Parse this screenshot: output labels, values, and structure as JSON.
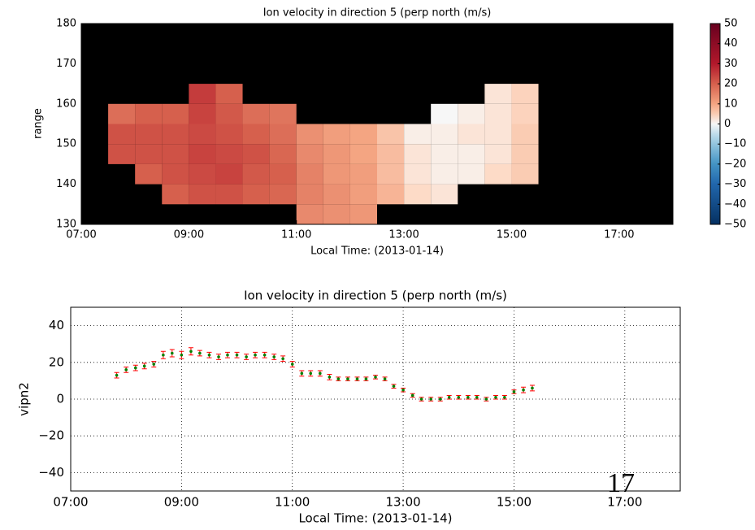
{
  "chart_data": [
    {
      "type": "heatmap",
      "title": "Ion velocity in direction 5 (perp north (m/s)",
      "x_label": "Local Time: (2013-01-14)",
      "y_label": "range",
      "background": "#000000",
      "colormap": "RdBu_r",
      "x_edges": [
        7.5,
        8,
        8.5,
        9,
        9.5,
        10,
        10.5,
        11,
        11.5,
        12,
        12.5,
        13,
        13.5,
        14,
        14.5,
        15,
        15.5
      ],
      "y_edges": [
        130,
        135,
        140,
        145,
        150,
        155,
        160,
        165,
        170
      ],
      "values": [
        [
          null,
          null,
          null,
          22,
          22,
          18,
          null,
          null
        ],
        [
          null,
          null,
          20,
          22,
          22,
          20,
          null,
          null
        ],
        [
          null,
          20,
          22,
          22,
          22,
          20,
          null,
          null
        ],
        [
          null,
          22,
          23,
          24,
          23,
          24,
          25,
          null
        ],
        [
          null,
          22,
          24,
          23,
          22,
          21,
          20,
          null
        ],
        [
          null,
          20,
          21,
          22,
          20,
          18,
          null,
          null
        ],
        [
          null,
          19,
          20,
          19,
          18,
          17,
          null,
          null
        ],
        [
          14,
          15,
          15,
          14,
          13,
          null,
          null,
          null
        ],
        [
          13,
          13,
          12,
          12,
          11,
          null,
          null,
          null
        ],
        [
          12,
          11,
          11,
          10,
          10,
          null,
          null,
          null
        ],
        [
          null,
          8,
          7,
          7,
          6,
          null,
          null,
          null
        ],
        [
          null,
          3,
          2,
          2,
          1,
          null,
          null,
          null
        ],
        [
          null,
          2,
          1,
          1,
          1,
          0,
          null,
          null
        ],
        [
          null,
          null,
          1,
          1,
          2,
          1,
          null,
          null
        ],
        [
          null,
          null,
          3,
          2,
          2,
          2,
          2,
          null
        ],
        [
          null,
          null,
          5,
          5,
          5,
          4,
          4,
          null
        ]
      ],
      "xlim": [
        7,
        18
      ],
      "xticks": [
        {
          "value": 7,
          "label": "07:00"
        },
        {
          "value": 9,
          "label": "09:00"
        },
        {
          "value": 11,
          "label": "11:00"
        },
        {
          "value": 13,
          "label": "13:00"
        },
        {
          "value": 15,
          "label": "15:00"
        },
        {
          "value": 17,
          "label": "17:00"
        }
      ],
      "ylim": [
        130,
        180
      ],
      "yticks": [
        130,
        140,
        150,
        160,
        170,
        180
      ],
      "clim": [
        -50,
        50
      ],
      "cticks": [
        50,
        40,
        30,
        20,
        10,
        0,
        {
          "value": -10,
          "label": "−10"
        },
        {
          "value": -20,
          "label": "−20"
        },
        {
          "value": -30,
          "label": "−30"
        },
        {
          "value": -40,
          "label": "−40"
        },
        {
          "value": -50,
          "label": "−50"
        }
      ]
    },
    {
      "type": "errorbar",
      "title": "Ion velocity in direction 5 (perp north (m/s)",
      "x_label": "Local Time: (2013-01-14)",
      "y_label": "vipn2",
      "annotation": "17",
      "color": "#ff0000",
      "marker_color": "#008000",
      "grid": true,
      "x": [
        7.83,
        8,
        8.17,
        8.33,
        8.5,
        8.67,
        8.83,
        9,
        9.17,
        9.33,
        9.5,
        9.67,
        9.83,
        10,
        10.17,
        10.33,
        10.5,
        10.67,
        10.83,
        11,
        11.17,
        11.33,
        11.5,
        11.67,
        11.83,
        12,
        12.17,
        12.33,
        12.5,
        12.67,
        12.83,
        13,
        13.17,
        13.33,
        13.5,
        13.67,
        13.83,
        14,
        14.17,
        14.33,
        14.5,
        14.67,
        14.83,
        15,
        15.17,
        15.33
      ],
      "values": [
        13,
        16,
        17,
        18,
        19,
        24,
        25,
        24,
        26,
        25,
        24,
        23,
        24,
        24,
        23,
        24,
        24,
        23,
        22,
        19,
        14,
        14,
        14,
        12,
        11,
        11,
        11,
        11,
        12,
        11,
        7,
        5,
        2,
        0,
        0,
        0,
        1,
        1,
        1,
        1,
        0,
        1,
        1,
        4,
        5,
        6
      ],
      "errors": [
        1.5,
        1.5,
        1.5,
        1.5,
        1.5,
        2,
        2,
        2,
        2,
        1.5,
        1.5,
        1.5,
        1.5,
        1.5,
        1.5,
        1.5,
        1.5,
        1.5,
        1.5,
        1.5,
        1.5,
        1.5,
        1.5,
        1.5,
        1,
        1,
        1,
        1,
        1,
        1,
        1,
        1,
        1,
        1,
        1,
        1,
        1,
        1,
        1,
        1,
        1,
        1,
        1,
        1,
        1.5,
        1.5
      ],
      "xlim": [
        7,
        18
      ],
      "xticks": [
        {
          "value": 7,
          "label": "07:00"
        },
        {
          "value": 9,
          "label": "09:00"
        },
        {
          "value": 11,
          "label": "11:00"
        },
        {
          "value": 13,
          "label": "13:00"
        },
        {
          "value": 15,
          "label": "15:00"
        },
        {
          "value": 17,
          "label": "17:00"
        }
      ],
      "ylim": [
        -50,
        50
      ],
      "yticks": [
        40,
        20,
        0,
        {
          "value": -20,
          "label": "−20"
        },
        {
          "value": -40,
          "label": "−40"
        }
      ]
    }
  ]
}
